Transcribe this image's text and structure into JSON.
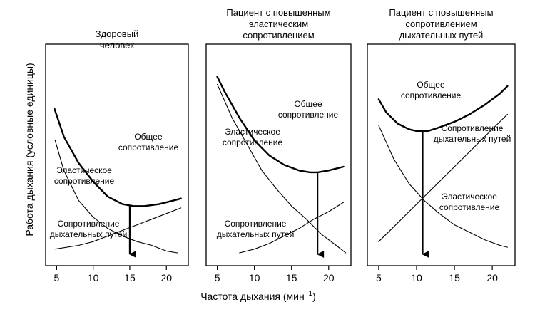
{
  "chart_data": {
    "type": "line",
    "ylabel": "Работа дыхания (условные единицы)",
    "xlabel_main": "Частота дыхания (мин",
    "xlabel_sup": "−1",
    "xlabel_close": ")",
    "xlim": [
      3.5,
      23
    ],
    "xticks": [
      5,
      10,
      15,
      20
    ],
    "ylim": [
      0,
      100
    ],
    "panels": [
      {
        "title": [
          "Здоровый",
          "человек"
        ],
        "series": [
          {
            "name": "Общее сопротивление",
            "label_lines": [
              "Общее",
              "сопротивление"
            ],
            "bold": true,
            "x": [
              4.7,
              6,
              8,
              10,
              12,
              14,
              15.5,
              17,
              19,
              21,
              22
            ],
            "y": [
              77,
              62,
              48,
              38,
              30,
              26,
              25,
              25,
              26,
              28,
              29
            ]
          },
          {
            "name": "Эластическое сопротивление",
            "label_lines": [
              "Эластическое",
              "сопротивление"
            ],
            "bold": false,
            "x": [
              4.8,
              6,
              8,
              10,
              12,
              14,
              16,
              18,
              20,
              21.5
            ],
            "y": [
              60,
              44,
              28,
              19,
              13,
              9,
              6,
              4,
              1,
              0
            ]
          },
          {
            "name": "Сопротивление дыхательных путей",
            "label_lines": [
              "Сопротивление",
              "дыхательных путей"
            ],
            "bold": false,
            "x": [
              4.8,
              8,
              10,
              12,
              14,
              16,
              18,
              20,
              22
            ],
            "y": [
              2,
              4,
              6,
              9,
              12,
              15,
              18,
              21,
              24
            ]
          }
        ],
        "min_x": 15
      },
      {
        "title": [
          "Пациент с повышенным",
          "эластическим",
          "сопротивлением"
        ],
        "series": [
          {
            "name": "Общее сопротивление",
            "label_lines": [
              "Общее",
              "сопротивление"
            ],
            "bold": true,
            "x": [
              5,
              6,
              8,
              10,
              12,
              14,
              16,
              17.5,
              18.5,
              20,
              22
            ],
            "y": [
              94,
              86,
              72,
              60,
              52,
              47,
              44,
              43,
              43,
              44,
              46
            ]
          },
          {
            "name": "Эластическое сопротивление",
            "label_lines": [
              "Эластическое",
              "сопротивление"
            ],
            "bold": false,
            "x": [
              5,
              7,
              9,
              11,
              13,
              15,
              17,
              19,
              21,
              22.3
            ],
            "y": [
              90,
              72,
              58,
              44,
              34,
              25,
              18,
              10,
              4,
              0
            ]
          },
          {
            "name": "Сопротивление дыхательных путей",
            "label_lines": [
              "Сопротивление",
              "дыхательных путей"
            ],
            "bold": false,
            "x": [
              8,
              10,
              12,
              14,
              16,
              18,
              20,
              22
            ],
            "y": [
              0,
              2,
              5,
              9,
              13,
              18,
              22,
              27
            ]
          }
        ],
        "min_x": 18.5
      },
      {
        "title": [
          "Пациент с повышенным",
          "сопротивлением",
          "дыхательных путей"
        ],
        "series": [
          {
            "name": "Общее сопротивление",
            "label_lines": [
              "Общее",
              "сопротивление"
            ],
            "bold": true,
            "x": [
              5,
              6,
              7.5,
              9,
              10,
              10.8,
              11.5,
              13,
              15,
              17,
              19,
              21,
              22
            ],
            "y": [
              82,
              75,
              69,
              66,
              65,
              65,
              65,
              67,
              70,
              74,
              79,
              85,
              89
            ]
          },
          {
            "name": "Сопротивление дыхательных путей",
            "label_lines": [
              "Сопротивление",
              "дыхательных путей"
            ],
            "bold": false,
            "x": [
              5,
              7,
              9,
              11,
              13,
              15,
              17,
              19,
              21,
              22
            ],
            "y": [
              6,
              14,
              22,
              30,
              38,
              46,
              54,
              62,
              70,
              74
            ]
          },
          {
            "name": "Эластическое сопротивление",
            "label_lines": [
              "Эластическое",
              "сопротивление"
            ],
            "bold": false,
            "x": [
              5,
              7,
              9,
              11,
              13,
              15,
              17,
              19,
              21,
              22
            ],
            "y": [
              68,
              50,
              37,
              28,
              21,
              15,
              11,
              7,
              4,
              3
            ]
          }
        ],
        "min_x": 10.8
      }
    ]
  }
}
